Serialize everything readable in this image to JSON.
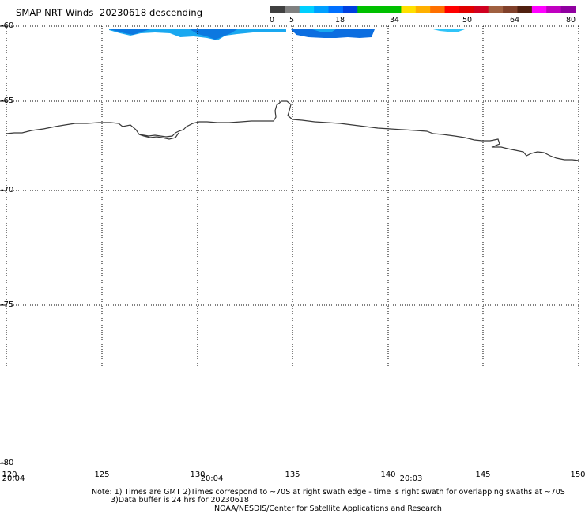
{
  "header": {
    "title": "SMAP NRT Winds  20230618 descending"
  },
  "colorbar": {
    "labels": [
      "0",
      "5",
      "18",
      "34",
      "50",
      "64",
      "80"
    ],
    "colors": [
      "#505050",
      "#00b8ff",
      "#00c800",
      "#ffd000",
      "#ff2020",
      "#8b4513",
      "#ff00ff"
    ]
  },
  "map": {
    "lat_labels": [
      "-60",
      "-65",
      "-70",
      "-75",
      "-80"
    ],
    "lon_labels": [
      "120",
      "125",
      "130",
      "135",
      "140",
      "145",
      "150"
    ],
    "times": [
      "20:04",
      "20:04",
      "20:03"
    ]
  },
  "footer": {
    "note1": "Note: 1) Times are GMT 2)Times correspond to ~70S at right swath edge - time is right swath for overlapping swaths at ~70S",
    "note2": "3)Data buffer is 24 hrs for 20230618",
    "credit": "NOAA/NESDIS/Center for Satellite Applications and Research"
  }
}
